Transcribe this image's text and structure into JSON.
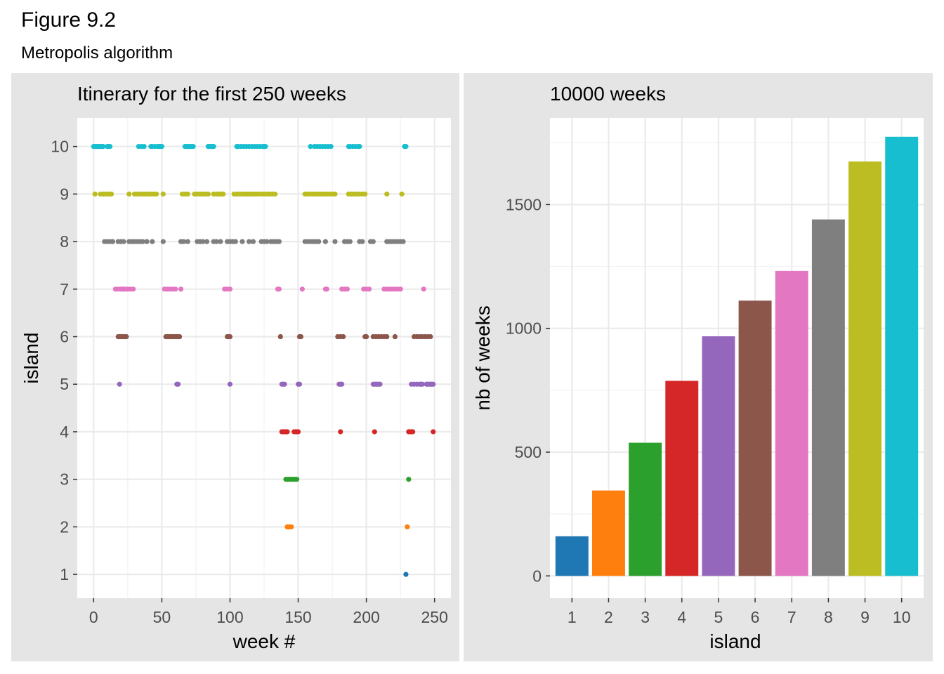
{
  "figure": {
    "title": "Figure 9.2",
    "subtitle": "Metropolis algorithm"
  },
  "colors": {
    "1": "#1f77b4",
    "2": "#ff7f0e",
    "3": "#2ca02c",
    "4": "#d62728",
    "5": "#9467bd",
    "6": "#8c564b",
    "7": "#e377c2",
    "8": "#7f7f7f",
    "9": "#bcbd22",
    "10": "#17becf"
  },
  "chart_data": [
    {
      "type": "scatter",
      "title": "Itinerary for the first 250 weeks",
      "xlabel": "week #",
      "ylabel": "island",
      "xlim": [
        -12,
        262
      ],
      "ylim": [
        0.5,
        10.6
      ],
      "xticks": [
        0,
        50,
        100,
        150,
        200,
        250
      ],
      "yticks": [
        1,
        2,
        3,
        4,
        5,
        6,
        7,
        8,
        9,
        10
      ],
      "grid": true,
      "points": [
        {
          "island": 10,
          "weeks": [
            0,
            1,
            2,
            3,
            4,
            5,
            6,
            7,
            10,
            11,
            12,
            33,
            35,
            37,
            42,
            43,
            45,
            47,
            48,
            49,
            50,
            67,
            68,
            69,
            70,
            71,
            72,
            73,
            84,
            85,
            86,
            87,
            88,
            105,
            106,
            108,
            110,
            112,
            114,
            116,
            118,
            120,
            122,
            124,
            125,
            126,
            159,
            162,
            164,
            166,
            168,
            170,
            172,
            174,
            187,
            188,
            190,
            192,
            194,
            195,
            228,
            229
          ]
        },
        {
          "island": 9,
          "weeks": [
            1,
            5,
            7,
            9,
            11,
            13,
            26,
            30,
            32,
            34,
            36,
            38,
            40,
            42,
            44,
            46,
            51,
            65,
            67,
            69,
            74,
            76,
            78,
            80,
            82,
            84,
            88,
            90,
            92,
            94,
            95,
            103,
            105,
            107,
            109,
            111,
            113,
            115,
            117,
            119,
            121,
            123,
            125,
            127,
            129,
            131,
            133,
            155,
            157,
            159,
            161,
            163,
            165,
            167,
            169,
            171,
            173,
            175,
            177,
            187,
            189,
            191,
            193,
            195,
            197,
            199,
            215,
            226
          ]
        },
        {
          "island": 8,
          "weeks": [
            8,
            10,
            12,
            14,
            18,
            20,
            22,
            26,
            28,
            30,
            32,
            34,
            36,
            39,
            43,
            51,
            64,
            66,
            69,
            76,
            78,
            80,
            83,
            88,
            90,
            93,
            98,
            100,
            102,
            104,
            109,
            114,
            117,
            123,
            125,
            127,
            130,
            132,
            134,
            136,
            155,
            157,
            159,
            161,
            163,
            165,
            170,
            177,
            184,
            186,
            188,
            195,
            197,
            203,
            205,
            215,
            217,
            219,
            221,
            223,
            225,
            227
          ]
        },
        {
          "island": 7,
          "weeks": [
            16,
            18,
            20,
            21,
            22,
            23,
            25,
            27,
            29,
            52,
            54,
            56,
            58,
            60,
            64,
            96,
            98,
            100,
            135,
            136,
            153,
            170,
            171,
            182,
            184,
            186,
            198,
            200,
            202,
            213,
            215,
            217,
            219,
            221,
            223,
            225,
            242
          ]
        },
        {
          "island": 6,
          "weeks": [
            18,
            19,
            20,
            21,
            22,
            23,
            24,
            53,
            54,
            55,
            56,
            57,
            58,
            59,
            60,
            61,
            62,
            63,
            98,
            99,
            100,
            137,
            151,
            152,
            179,
            181,
            183,
            199,
            200,
            205,
            207,
            209,
            211,
            213,
            215,
            221,
            235,
            237,
            239,
            241,
            243,
            245,
            247
          ]
        },
        {
          "island": 5,
          "weeks": [
            19,
            61,
            62,
            100,
            138,
            139,
            140,
            150,
            151,
            180,
            181,
            182,
            205,
            206,
            207,
            208,
            209,
            210,
            233,
            235,
            237,
            239,
            240,
            241,
            244,
            245,
            246,
            247,
            248,
            249
          ]
        },
        {
          "island": 4,
          "weeks": [
            138,
            139,
            140,
            141,
            142,
            147,
            148,
            149,
            150,
            181,
            206,
            231,
            232,
            233,
            234,
            249
          ]
        },
        {
          "island": 3,
          "weeks": [
            141,
            142,
            143,
            144,
            145,
            146,
            147,
            148,
            149,
            231
          ]
        },
        {
          "island": 2,
          "weeks": [
            142,
            143,
            144,
            145,
            230
          ]
        },
        {
          "island": 1,
          "weeks": [
            229
          ]
        }
      ]
    },
    {
      "type": "bar",
      "title": "10000 weeks",
      "xlabel": "island",
      "ylabel": "nb of weeks",
      "categories": [
        "1",
        "2",
        "3",
        "4",
        "5",
        "6",
        "7",
        "8",
        "9",
        "10"
      ],
      "values": [
        160,
        345,
        538,
        788,
        968,
        1112,
        1232,
        1440,
        1674,
        1774
      ],
      "ylim": [
        -90,
        1850
      ],
      "yticks": [
        0,
        500,
        1000,
        1500
      ],
      "grid": true
    }
  ]
}
